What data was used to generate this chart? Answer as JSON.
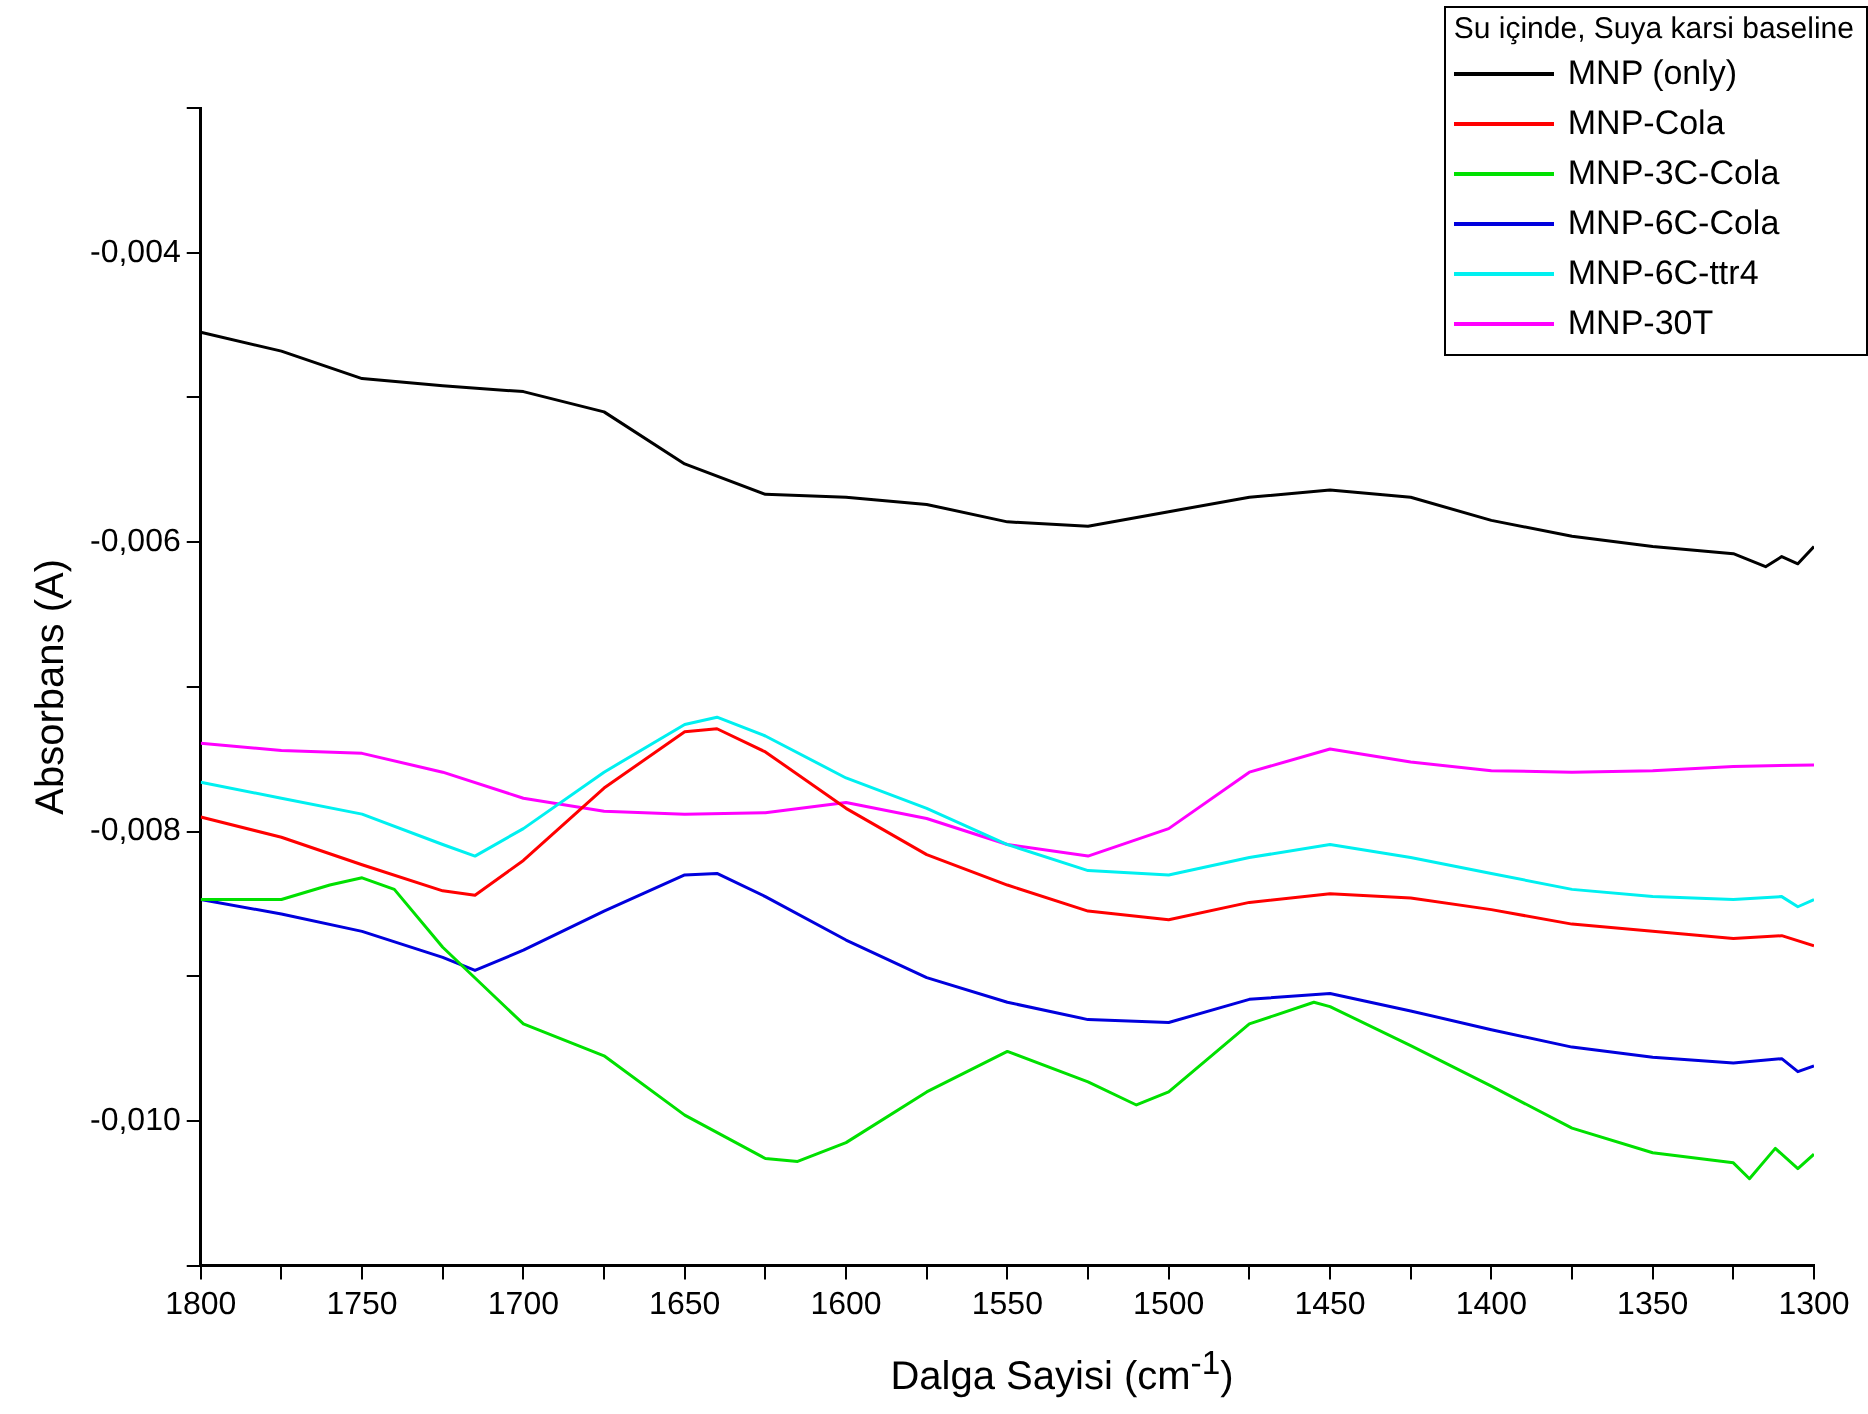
{
  "chart_data": {
    "type": "line",
    "xlabel": "Dalga Sayisi (cm$^{-1}$)",
    "ylabel": "Absorbans (A)",
    "legend_title": "Su içinde, Suya karsi baseline",
    "legend": "top right",
    "grid": false,
    "marker": "none",
    "line_style": "solid",
    "xlim": [
      1800,
      1300
    ],
    "ylim": [
      -0.011,
      -0.003
    ],
    "xticks": [
      1800,
      {
        "value": 1775,
        "label": null
      },
      1750,
      {
        "value": 1725,
        "label": null
      },
      1700,
      {
        "value": 1675,
        "label": null
      },
      1650,
      {
        "value": 1625,
        "label": null
      },
      1600,
      {
        "value": 1575,
        "label": null
      },
      1550,
      {
        "value": 1525,
        "label": null
      },
      1500,
      {
        "value": 1475,
        "label": null
      },
      1450,
      {
        "value": 1425,
        "label": null
      },
      1400,
      {
        "value": 1375,
        "label": null
      },
      1350,
      {
        "value": 1325,
        "label": null
      },
      1300
    ],
    "yticks": [
      {
        "value": -0.011,
        "label": null
      },
      {
        "value": -0.01,
        "label": "-0,010"
      },
      {
        "value": -0.009,
        "label": null
      },
      {
        "value": -0.008,
        "label": "-0,008"
      },
      {
        "value": -0.007,
        "label": null
      },
      {
        "value": -0.006,
        "label": "-0,006"
      },
      {
        "value": -0.005,
        "label": null
      },
      {
        "value": -0.004,
        "label": "-0,004"
      },
      {
        "value": -0.003,
        "label": null
      }
    ],
    "series": [
      {
        "name": "MNP (only)",
        "color": "#000000",
        "x": [
          1800,
          1775,
          1750,
          1725,
          1700,
          1675,
          1650,
          1625,
          1600,
          1575,
          1550,
          1525,
          1500,
          1475,
          1450,
          1425,
          1400,
          1375,
          1350,
          1325,
          1315,
          1310,
          1305,
          1300
        ],
        "values": [
          -0.00455,
          -0.00468,
          -0.00487,
          -0.00492,
          -0.00496,
          -0.0051,
          -0.00546,
          -0.00567,
          -0.00569,
          -0.00574,
          -0.00586,
          -0.00589,
          -0.00579,
          -0.00569,
          -0.00564,
          -0.00569,
          -0.00585,
          -0.00596,
          -0.00603,
          -0.00608,
          -0.00617,
          -0.0061,
          -0.00615,
          -0.00603
        ]
      },
      {
        "name": "MNP-Cola",
        "color": "#ff0000",
        "x": [
          1800,
          1775,
          1750,
          1725,
          1715,
          1700,
          1675,
          1650,
          1640,
          1625,
          1600,
          1575,
          1550,
          1525,
          1500,
          1475,
          1450,
          1425,
          1400,
          1375,
          1350,
          1325,
          1310,
          1300
        ],
        "values": [
          -0.0079,
          -0.00804,
          -0.00823,
          -0.00841,
          -0.00844,
          -0.0082,
          -0.0077,
          -0.00731,
          -0.00729,
          -0.00745,
          -0.00784,
          -0.00816,
          -0.00837,
          -0.00855,
          -0.00861,
          -0.00849,
          -0.00843,
          -0.00846,
          -0.00854,
          -0.00864,
          -0.00869,
          -0.00874,
          -0.00872,
          -0.00879
        ]
      },
      {
        "name": "MNP-3C-Cola",
        "color": "#00e000",
        "x": [
          1800,
          1775,
          1760,
          1750,
          1740,
          1725,
          1700,
          1675,
          1650,
          1625,
          1615,
          1600,
          1575,
          1550,
          1525,
          1510,
          1500,
          1475,
          1455,
          1450,
          1425,
          1400,
          1375,
          1350,
          1325,
          1320,
          1312,
          1305,
          1300
        ],
        "values": [
          -0.00847,
          -0.00847,
          -0.00837,
          -0.00832,
          -0.0084,
          -0.0088,
          -0.00933,
          -0.00955,
          -0.00996,
          -0.01026,
          -0.01028,
          -0.01015,
          -0.0098,
          -0.00952,
          -0.00973,
          -0.00989,
          -0.0098,
          -0.00933,
          -0.00918,
          -0.00921,
          -0.00948,
          -0.00976,
          -0.01005,
          -0.01022,
          -0.01029,
          -0.0104,
          -0.01019,
          -0.01033,
          -0.01023
        ]
      },
      {
        "name": "MNP-6C-Cola",
        "color": "#0000dd",
        "x": [
          1800,
          1775,
          1750,
          1725,
          1715,
          1700,
          1675,
          1650,
          1640,
          1625,
          1600,
          1575,
          1550,
          1525,
          1500,
          1475,
          1450,
          1425,
          1400,
          1375,
          1350,
          1325,
          1310,
          1305,
          1300
        ],
        "values": [
          -0.00847,
          -0.00857,
          -0.00869,
          -0.00887,
          -0.00896,
          -0.00882,
          -0.00855,
          -0.0083,
          -0.00829,
          -0.00845,
          -0.00875,
          -0.00901,
          -0.00918,
          -0.0093,
          -0.00932,
          -0.00916,
          -0.00912,
          -0.00924,
          -0.00937,
          -0.00949,
          -0.00956,
          -0.0096,
          -0.00957,
          -0.00966,
          -0.00962
        ]
      },
      {
        "name": "MNP-6C-ttr4",
        "color": "#00f0f0",
        "x": [
          1800,
          1775,
          1750,
          1725,
          1715,
          1700,
          1675,
          1650,
          1640,
          1625,
          1600,
          1575,
          1550,
          1525,
          1500,
          1475,
          1450,
          1425,
          1400,
          1375,
          1350,
          1325,
          1310,
          1305,
          1300
        ],
        "values": [
          -0.00766,
          -0.00777,
          -0.00788,
          -0.00809,
          -0.00817,
          -0.00798,
          -0.00759,
          -0.00726,
          -0.00721,
          -0.00734,
          -0.00763,
          -0.00784,
          -0.00809,
          -0.00827,
          -0.0083,
          -0.00818,
          -0.00809,
          -0.00818,
          -0.00829,
          -0.0084,
          -0.00845,
          -0.00847,
          -0.00845,
          -0.00852,
          -0.00847
        ]
      },
      {
        "name": "MNP-30T",
        "color": "#ff00ff",
        "x": [
          1800,
          1775,
          1750,
          1725,
          1700,
          1675,
          1650,
          1625,
          1600,
          1575,
          1550,
          1525,
          1500,
          1475,
          1450,
          1425,
          1400,
          1375,
          1350,
          1325,
          1300
        ],
        "values": [
          -0.00739,
          -0.00744,
          -0.00746,
          -0.00759,
          -0.00777,
          -0.00786,
          -0.00788,
          -0.00787,
          -0.0078,
          -0.00791,
          -0.00809,
          -0.00817,
          -0.00798,
          -0.00759,
          -0.00743,
          -0.00752,
          -0.00758,
          -0.00759,
          -0.00758,
          -0.00755,
          -0.00754
        ]
      }
    ]
  }
}
